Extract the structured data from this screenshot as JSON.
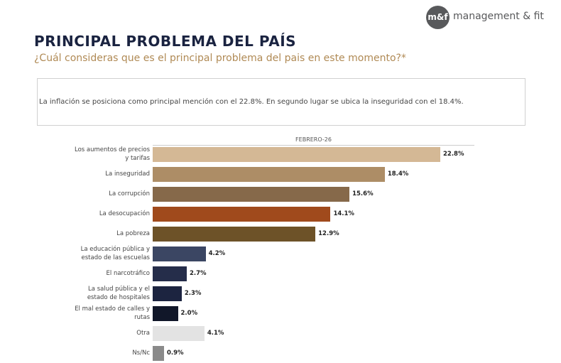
{
  "logo": {
    "mark": "m&f",
    "text": "management & fit"
  },
  "note": "La inflación se posiciona como principal mención con el 22.8%. En segundo lugar se ubica la inseguridad con el 18.4%.",
  "chart_data": {
    "type": "bar",
    "orientation": "horizontal",
    "title": "PRINCIPAL PROBLEMA DEL PAÍS",
    "subtitle": "¿Cuál consideras que es el principal problema del pais en este momento?*",
    "series_label": "FEBRERO-26",
    "categories": [
      "Los aumentos de precios\ny tarifas",
      "La inseguridad",
      "La corrupción",
      "La desocupación",
      "La pobreza",
      "La educación pública y\nestado de las escuelas",
      "El narcotráfico",
      "La salud pública y el\nestado de hospitales",
      "El mal estado de calles y\nrutas",
      "Otra",
      "Ns/Nc"
    ],
    "values": [
      22.8,
      18.4,
      15.6,
      14.1,
      12.9,
      4.2,
      2.7,
      2.3,
      2.0,
      4.1,
      0.9
    ],
    "value_labels": [
      "22.8%",
      "18.4%",
      "15.6%",
      "14.1%",
      "12.9%",
      "4.2%",
      "2.7%",
      "2.3%",
      "2.0%",
      "4.1%",
      "0.9%"
    ],
    "colors": [
      "#d4b895",
      "#ad8d66",
      "#86694a",
      "#a04a1c",
      "#6d5228",
      "#3b4663",
      "#252d4a",
      "#1c2440",
      "#111729",
      "#e3e3e3",
      "#8a8a8a"
    ]
  }
}
